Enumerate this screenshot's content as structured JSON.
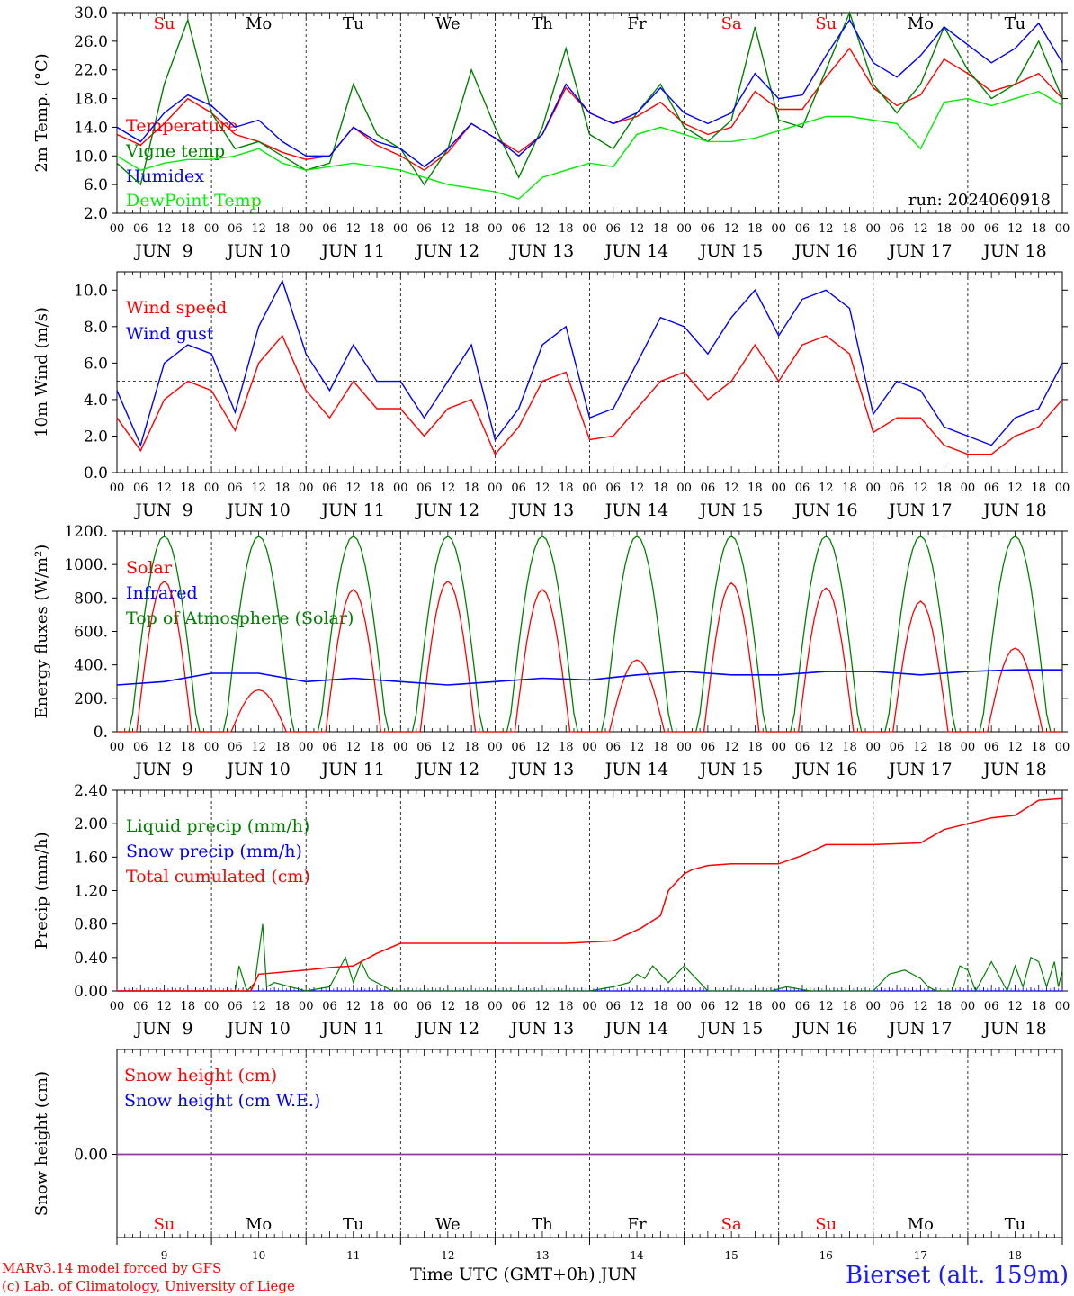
{
  "footer": {
    "credit_line1": "MARv3.14 model forced by GFS",
    "credit_line2": "(c) Lab. of Climatology, University of Liege",
    "time_axis_label": "Time UTC (GMT+0h) JUN",
    "station": "Bierset (alt. 159m)"
  },
  "colors": {
    "red": "#ff0000",
    "blue": "#0000ff",
    "green": "#008000",
    "lightgreen": "#00ee00",
    "purple": "#9933aa",
    "black": "#000000"
  },
  "days": {
    "weekday": [
      "Su",
      "Mo",
      "Tu",
      "We",
      "Th",
      "Fr",
      "Sa",
      "Su",
      "Mo",
      "Tu"
    ],
    "weekday_colors": [
      "#ff0000",
      "#000000",
      "#000000",
      "#000000",
      "#000000",
      "#000000",
      "#ff0000",
      "#ff0000",
      "#000000",
      "#000000"
    ],
    "date_labels": [
      "JUN  9",
      "JUN 10",
      "JUN 11",
      "JUN 12",
      "JUN 13",
      "JUN 14",
      "JUN 15",
      "JUN 16",
      "JUN 17",
      "JUN 18"
    ],
    "day_numbers": [
      "9",
      "10",
      "11",
      "12",
      "13",
      "14",
      "15",
      "16",
      "17",
      "18"
    ],
    "hour_ticks": [
      "00",
      "06",
      "12",
      "18"
    ],
    "end_tick": "00"
  },
  "chart_data": [
    {
      "id": "temp",
      "type": "line",
      "ylabel": "2m Temp. (°C)",
      "ylim": [
        2,
        30
      ],
      "yticks": [
        "2.0",
        "6.0",
        "10.0",
        "14.0",
        "18.0",
        "22.0",
        "26.0",
        "30.0"
      ],
      "ytick_values": [
        2,
        6,
        10,
        14,
        18,
        22,
        26,
        30
      ],
      "annotation": "run: 2024060918",
      "x_hours": [
        0,
        6,
        12,
        18,
        24,
        30,
        36,
        42,
        48,
        54,
        60,
        66,
        72,
        78,
        84,
        90,
        96,
        102,
        108,
        114,
        120,
        126,
        132,
        138,
        144,
        150,
        156,
        162,
        168,
        174,
        180,
        186,
        192,
        198,
        204,
        210,
        216,
        222,
        228,
        234,
        240
      ],
      "series": [
        {
          "name": "Temperature",
          "color": "#ff0000",
          "values": [
            13,
            11.5,
            14.5,
            18,
            16,
            13,
            12,
            10.5,
            9.5,
            10,
            14,
            11.5,
            10,
            8,
            10.5,
            14.5,
            12.5,
            10.5,
            13,
            19.5,
            16,
            14.5,
            15.5,
            17.5,
            14.5,
            13,
            14,
            19,
            16.5,
            16.5,
            21,
            25,
            19.5,
            17,
            18.5,
            23.5,
            21.5,
            19,
            20,
            21.5,
            18
          ]
        },
        {
          "name": "Vigne temp",
          "color": "#008000",
          "values": [
            9,
            6,
            20,
            29,
            16,
            11,
            12,
            10,
            8,
            9,
            20,
            13,
            11,
            6,
            11,
            22,
            14,
            7,
            14,
            25,
            13,
            11,
            16,
            20,
            14,
            12,
            15,
            28,
            15,
            14,
            22,
            30,
            20,
            16,
            20,
            28,
            22,
            18,
            20,
            26,
            18
          ]
        },
        {
          "name": "Humidex",
          "color": "#0000ff",
          "values": [
            14,
            12,
            16,
            18.5,
            17,
            14,
            15,
            12,
            10,
            10,
            14,
            12,
            11,
            8.5,
            11,
            14.5,
            12.5,
            10,
            13,
            20,
            16,
            14.5,
            16,
            19.5,
            16,
            14.5,
            16,
            21.5,
            18,
            18.5,
            24,
            29,
            23,
            21,
            24,
            28,
            25.5,
            23,
            25,
            28.5,
            23
          ]
        },
        {
          "name": "DewPoint Temp",
          "color": "#00ee00",
          "values": [
            10,
            8,
            9,
            9.5,
            9.5,
            10,
            11,
            9,
            8,
            8.5,
            9,
            8.5,
            8,
            7,
            6,
            5.5,
            5,
            4,
            7,
            8,
            9,
            8.5,
            13,
            14,
            13,
            12,
            12,
            12.5,
            13.5,
            14.5,
            15.5,
            15.5,
            15,
            14.5,
            11,
            17.5,
            18,
            17,
            18,
            19,
            17
          ]
        }
      ]
    },
    {
      "id": "wind",
      "type": "line",
      "ylabel": "10m Wind (m/s)",
      "ylim": [
        0,
        11
      ],
      "yticks": [
        "0.0",
        "2.0",
        "4.0",
        "6.0",
        "8.0",
        "10.0"
      ],
      "ytick_values": [
        0,
        2,
        4,
        6,
        8,
        10
      ],
      "reference_line": 5,
      "x_hours": [
        0,
        6,
        12,
        18,
        24,
        30,
        36,
        42,
        48,
        54,
        60,
        66,
        72,
        78,
        84,
        90,
        96,
        102,
        108,
        114,
        120,
        126,
        132,
        138,
        144,
        150,
        156,
        162,
        168,
        174,
        180,
        186,
        192,
        198,
        204,
        210,
        216,
        222,
        228,
        234,
        240
      ],
      "series": [
        {
          "name": "Wind speed",
          "color": "#ff0000",
          "values": [
            3,
            1.2,
            4,
            5,
            4.5,
            2.3,
            6,
            7.5,
            4.5,
            3,
            5,
            3.5,
            3.5,
            2,
            3.5,
            4,
            1,
            2.5,
            5,
            5.5,
            1.8,
            2,
            3.5,
            5,
            5.5,
            4,
            5,
            7,
            5,
            7,
            7.5,
            6.5,
            2.2,
            3,
            3,
            1.5,
            1,
            1,
            2,
            2.5,
            4
          ]
        },
        {
          "name": "Wind gust",
          "color": "#0000ff",
          "values": [
            4.5,
            1.5,
            6,
            7,
            6.5,
            3.3,
            8,
            10.5,
            6.5,
            4.5,
            7,
            5,
            5,
            3,
            5,
            7,
            1.8,
            3.5,
            7,
            8,
            3,
            3.5,
            6,
            8.5,
            8,
            6.5,
            8.5,
            10,
            7.5,
            9.5,
            10,
            9,
            3.2,
            5,
            4.5,
            2.5,
            2,
            1.5,
            3,
            3.5,
            6
          ]
        }
      ]
    },
    {
      "id": "flux",
      "type": "line",
      "ylabel": "Energy fluxes (W/m²)",
      "ylim": [
        0,
        1200
      ],
      "yticks": [
        "0.",
        "200.",
        "400.",
        "600.",
        "800.",
        "1000.",
        "1200."
      ],
      "ytick_values": [
        0,
        200,
        400,
        600,
        800,
        1000,
        1200
      ],
      "series": [
        {
          "name": "Solar",
          "color": "#ff0000",
          "daily_peak": [
            900,
            250,
            850,
            900,
            850,
            430,
            890,
            860,
            780,
            500
          ]
        },
        {
          "name": "Infrared",
          "color": "#0000ff",
          "x_hours": [
            0,
            12,
            24,
            36,
            48,
            60,
            72,
            84,
            96,
            108,
            120,
            132,
            144,
            156,
            168,
            180,
            192,
            204,
            216,
            228,
            240
          ],
          "values": [
            280,
            300,
            350,
            350,
            300,
            320,
            300,
            280,
            300,
            320,
            310,
            340,
            360,
            340,
            340,
            360,
            360,
            340,
            360,
            370,
            370
          ]
        },
        {
          "name": "Top of Atmosphere (Solar)",
          "color": "#008000",
          "daily_peak": [
            1170,
            1170,
            1170,
            1170,
            1170,
            1170,
            1170,
            1170,
            1170,
            1170
          ]
        }
      ]
    },
    {
      "id": "precip",
      "type": "line",
      "ylabel": "Precip (mm/h)",
      "ylim": [
        0,
        2.4
      ],
      "yticks": [
        "0.00",
        "0.40",
        "0.80",
        "1.20",
        "1.60",
        "2.00",
        "2.40"
      ],
      "ytick_values": [
        0,
        0.4,
        0.8,
        1.2,
        1.6,
        2.0,
        2.4
      ],
      "series": [
        {
          "name": "Liquid precip (mm/h)",
          "color": "#008000",
          "x_hours": [
            0,
            24,
            30,
            31,
            33,
            35,
            37,
            38,
            40,
            44,
            48,
            54,
            58,
            60,
            62,
            64,
            70,
            72,
            90,
            96,
            114,
            120,
            126,
            130,
            132,
            134,
            136,
            140,
            144,
            150,
            166,
            170,
            176,
            180,
            186,
            190,
            192,
            196,
            200,
            202,
            204,
            206,
            208,
            212,
            214,
            216,
            218,
            222,
            226,
            228,
            230,
            232,
            234,
            236,
            238,
            239,
            240
          ],
          "values": [
            0,
            0,
            0,
            0.3,
            0,
            0.1,
            0.8,
            0.05,
            0.1,
            0.05,
            0,
            0.05,
            0.4,
            0.1,
            0.35,
            0.15,
            0,
            0,
            0,
            0,
            0,
            0,
            0.05,
            0.1,
            0.2,
            0.15,
            0.3,
            0.1,
            0.3,
            0,
            0,
            0.05,
            0,
            0,
            0,
            0,
            0,
            0.2,
            0.25,
            0.2,
            0.15,
            0.05,
            0,
            0,
            0.3,
            0.25,
            0,
            0.35,
            0,
            0.3,
            0.05,
            0.4,
            0.35,
            0.05,
            0.35,
            0.05,
            0.25
          ]
        },
        {
          "name": "Snow precip (mm/h)",
          "color": "#0000ff",
          "x_hours": [
            0,
            240
          ],
          "values": [
            0,
            0
          ]
        },
        {
          "name": "Total cumulated (cm)",
          "color": "#ff0000",
          "x_hours": [
            0,
            34,
            36,
            48,
            54,
            60,
            66,
            72,
            96,
            114,
            126,
            133,
            138,
            140,
            144,
            146,
            150,
            156,
            168,
            174,
            180,
            192,
            204,
            210,
            216,
            222,
            228,
            234,
            240
          ],
          "values": [
            0,
            0,
            0.2,
            0.25,
            0.28,
            0.3,
            0.45,
            0.57,
            0.57,
            0.57,
            0.6,
            0.75,
            0.9,
            1.2,
            1.4,
            1.45,
            1.5,
            1.52,
            1.52,
            1.62,
            1.75,
            1.75,
            1.77,
            1.93,
            2.0,
            2.07,
            2.1,
            2.28,
            2.3
          ]
        }
      ]
    },
    {
      "id": "snow",
      "type": "line",
      "ylabel": "Snow height (cm)",
      "yticks": [
        "0.00"
      ],
      "ytick_values": [
        0
      ],
      "series": [
        {
          "name": "Snow height (cm)",
          "color": "#ff0000",
          "x_hours": [
            0,
            240
          ],
          "values": [
            0,
            0
          ]
        },
        {
          "name": "Snow height (cm W.E.)",
          "color": "#0000ff",
          "x_hours": [
            0,
            240
          ],
          "values": [
            0,
            0
          ]
        }
      ]
    }
  ]
}
